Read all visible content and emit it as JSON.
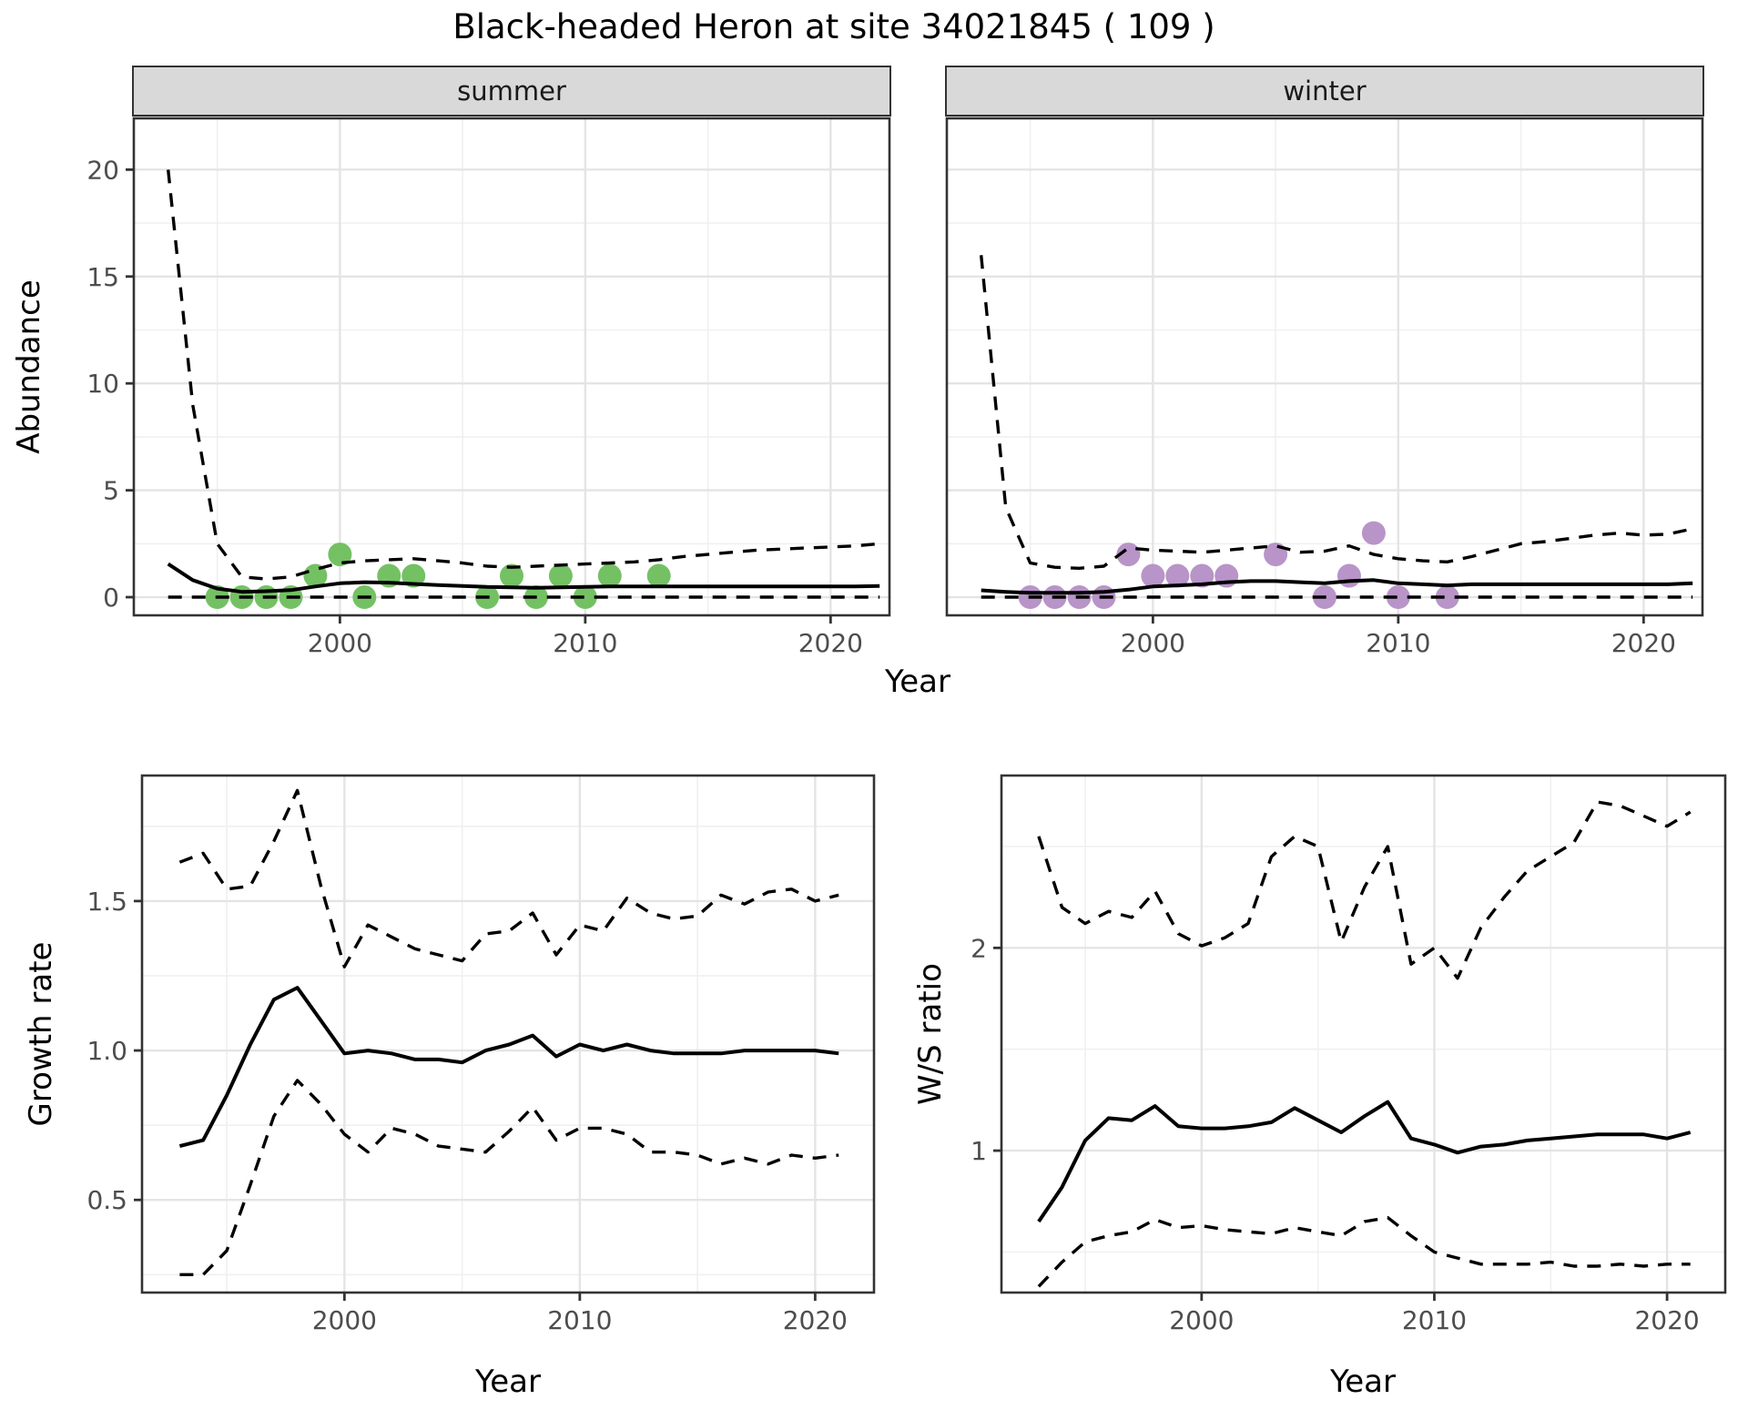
{
  "title": "Black-headed Heron at site 34021845 ( 109 )",
  "facets": {
    "summer": "summer",
    "winter": "winter"
  },
  "axis_titles": {
    "abundance": "Abundance",
    "year": "Year",
    "growth": "Growth rate",
    "ws": "W/S ratio"
  },
  "colors": {
    "summer_points": "#74C164",
    "winter_points": "#B894C8",
    "line": "#000000",
    "strip_bg": "#d9d9d9",
    "grid_major": "#e4e4e4",
    "grid_minor": "#f0f0f0",
    "panel_border": "#333333",
    "tick_text": "#4d4d4d"
  },
  "chart_data": [
    {
      "id": "summer",
      "type": "line",
      "facet_label": "summer",
      "xlabel": "Year",
      "ylabel": "Abundance",
      "xticks": {
        "values": [
          2000,
          2010,
          2020
        ],
        "labels": [
          "2000",
          "2010",
          "2020"
        ]
      },
      "yticks": {
        "values": [
          0,
          5,
          10,
          15,
          20
        ],
        "labels": [
          "0",
          "5",
          "10",
          "15",
          "20"
        ]
      },
      "xlim": [
        1991.6,
        2022.4
      ],
      "ylim": [
        -0.85,
        22.4
      ],
      "x": [
        1993,
        1994,
        1995,
        1996,
        1997,
        1998,
        1999,
        2000,
        2001,
        2002,
        2003,
        2004,
        2005,
        2006,
        2007,
        2008,
        2009,
        2010,
        2011,
        2012,
        2013,
        2014,
        2015,
        2016,
        2017,
        2018,
        2019,
        2020,
        2021,
        2022
      ],
      "series": [
        {
          "name": "upper_ci",
          "style": "dashed",
          "values": [
            20,
            9,
            2.5,
            0.95,
            0.85,
            0.95,
            1.3,
            1.6,
            1.7,
            1.75,
            1.8,
            1.7,
            1.6,
            1.45,
            1.4,
            1.45,
            1.5,
            1.55,
            1.6,
            1.65,
            1.75,
            1.9,
            2.0,
            2.1,
            2.2,
            2.25,
            2.3,
            2.35,
            2.4,
            2.5
          ]
        },
        {
          "name": "median",
          "style": "solid",
          "values": [
            1.55,
            0.8,
            0.4,
            0.25,
            0.28,
            0.33,
            0.5,
            0.65,
            0.7,
            0.68,
            0.62,
            0.57,
            0.52,
            0.48,
            0.46,
            0.44,
            0.46,
            0.48,
            0.5,
            0.5,
            0.5,
            0.5,
            0.5,
            0.5,
            0.5,
            0.5,
            0.5,
            0.5,
            0.5,
            0.52
          ]
        },
        {
          "name": "lower_ci",
          "style": "dashed",
          "values": [
            0,
            0,
            0,
            0,
            0,
            0,
            0,
            0,
            0,
            0,
            0,
            0,
            0,
            0,
            0,
            0,
            0,
            0,
            0,
            0,
            0,
            0,
            0,
            0,
            0,
            0,
            0,
            0,
            0,
            0
          ]
        }
      ],
      "points": {
        "color_key": "summer_points",
        "years": [
          1995,
          1996,
          1997,
          1998,
          1999,
          2000,
          2001,
          2002,
          2003,
          2006,
          2007,
          2008,
          2009,
          2010,
          2011,
          2013
        ],
        "counts": [
          0,
          0,
          0,
          0,
          1,
          2,
          0,
          1,
          1,
          0,
          1,
          0,
          1,
          0,
          1,
          1
        ]
      }
    },
    {
      "id": "winter",
      "type": "line",
      "facet_label": "winter",
      "xlabel": "Year",
      "ylabel": "Abundance",
      "xticks": {
        "values": [
          2000,
          2010,
          2020
        ],
        "labels": [
          "2000",
          "2010",
          "2020"
        ]
      },
      "yticks": {
        "values": [
          0,
          5,
          10,
          15,
          20
        ],
        "labels": [
          "0",
          "5",
          "10",
          "15",
          "20"
        ]
      },
      "xlim": [
        1991.6,
        2022.4
      ],
      "ylim": [
        -0.85,
        22.4
      ],
      "x": [
        1993,
        1994,
        1995,
        1996,
        1997,
        1998,
        1999,
        2000,
        2001,
        2002,
        2003,
        2004,
        2005,
        2006,
        2007,
        2008,
        2009,
        2010,
        2011,
        2012,
        2013,
        2014,
        2015,
        2016,
        2017,
        2018,
        2019,
        2020,
        2021,
        2022
      ],
      "series": [
        {
          "name": "upper_ci",
          "style": "dashed",
          "values": [
            16,
            4.2,
            1.6,
            1.4,
            1.35,
            1.45,
            2.3,
            2.2,
            2.15,
            2.1,
            2.2,
            2.3,
            2.4,
            2.1,
            2.15,
            2.4,
            2.0,
            1.8,
            1.7,
            1.65,
            1.9,
            2.2,
            2.5,
            2.6,
            2.75,
            2.9,
            3.0,
            2.9,
            2.95,
            3.2
          ]
        },
        {
          "name": "median",
          "style": "solid",
          "values": [
            0.32,
            0.25,
            0.2,
            0.2,
            0.2,
            0.25,
            0.35,
            0.5,
            0.55,
            0.6,
            0.7,
            0.75,
            0.75,
            0.7,
            0.65,
            0.75,
            0.8,
            0.65,
            0.6,
            0.55,
            0.6,
            0.6,
            0.6,
            0.6,
            0.6,
            0.6,
            0.6,
            0.6,
            0.6,
            0.65
          ]
        },
        {
          "name": "lower_ci",
          "style": "dashed",
          "values": [
            0,
            0,
            0,
            0,
            0,
            0,
            0,
            0,
            0,
            0,
            0,
            0,
            0,
            0,
            0,
            0,
            0,
            0,
            0,
            0,
            0,
            0,
            0,
            0,
            0,
            0,
            0,
            0,
            0,
            0
          ]
        }
      ],
      "points": {
        "color_key": "winter_points",
        "years": [
          1995,
          1996,
          1997,
          1998,
          1999,
          2000,
          2001,
          2002,
          2003,
          2005,
          2007,
          2008,
          2009,
          2010,
          2012
        ],
        "counts": [
          0,
          0,
          0,
          0,
          2,
          1,
          1,
          1,
          1,
          2,
          0,
          1,
          3,
          0,
          0
        ]
      }
    },
    {
      "id": "growth",
      "type": "line",
      "xlabel": "Year",
      "ylabel": "Growth rate",
      "xticks": {
        "values": [
          2000,
          2010,
          2020
        ],
        "labels": [
          "2000",
          "2010",
          "2020"
        ]
      },
      "yticks": {
        "values": [
          0.5,
          1.0,
          1.5
        ],
        "labels": [
          "0.5",
          "1.0",
          "1.5"
        ]
      },
      "xlim": [
        1991.4,
        2022.5
      ],
      "ylim": [
        0.19,
        1.92
      ],
      "x": [
        1993,
        1994,
        1995,
        1996,
        1997,
        1998,
        1999,
        2000,
        2001,
        2002,
        2003,
        2004,
        2005,
        2006,
        2007,
        2008,
        2009,
        2010,
        2011,
        2012,
        2013,
        2014,
        2015,
        2016,
        2017,
        2018,
        2019,
        2020,
        2021
      ],
      "series": [
        {
          "name": "upper_ci",
          "style": "dashed",
          "values": [
            1.63,
            1.66,
            1.54,
            1.55,
            1.7,
            1.87,
            1.55,
            1.28,
            1.42,
            1.38,
            1.34,
            1.32,
            1.3,
            1.39,
            1.4,
            1.46,
            1.32,
            1.42,
            1.4,
            1.51,
            1.46,
            1.44,
            1.45,
            1.52,
            1.49,
            1.53,
            1.54,
            1.5,
            1.52
          ]
        },
        {
          "name": "median",
          "style": "solid",
          "values": [
            0.68,
            0.7,
            0.85,
            1.02,
            1.17,
            1.21,
            1.1,
            0.99,
            1.0,
            0.99,
            0.97,
            0.97,
            0.96,
            1.0,
            1.02,
            1.05,
            0.98,
            1.02,
            1.0,
            1.02,
            1.0,
            0.99,
            0.99,
            0.99,
            1.0,
            1.0,
            1.0,
            1.0,
            0.99
          ]
        },
        {
          "name": "lower_ci",
          "style": "dashed",
          "values": [
            0.25,
            0.25,
            0.33,
            0.55,
            0.78,
            0.9,
            0.82,
            0.72,
            0.66,
            0.74,
            0.72,
            0.68,
            0.67,
            0.66,
            0.73,
            0.81,
            0.7,
            0.74,
            0.74,
            0.72,
            0.66,
            0.66,
            0.65,
            0.62,
            0.64,
            0.62,
            0.65,
            0.64,
            0.65
          ]
        }
      ]
    },
    {
      "id": "ws",
      "type": "line",
      "xlabel": "Year",
      "ylabel": "W/S ratio",
      "xticks": {
        "values": [
          2000,
          2010,
          2020
        ],
        "labels": [
          "2000",
          "2010",
          "2020"
        ]
      },
      "yticks": {
        "values": [
          1,
          2
        ],
        "labels": [
          "1",
          "2"
        ]
      },
      "xlim": [
        1991.4,
        2022.5
      ],
      "ylim": [
        0.3,
        2.85
      ],
      "x": [
        1993,
        1994,
        1995,
        1996,
        1997,
        1998,
        1999,
        2000,
        2001,
        2002,
        2003,
        2004,
        2005,
        2006,
        2007,
        2008,
        2009,
        2010,
        2011,
        2012,
        2013,
        2014,
        2015,
        2016,
        2017,
        2018,
        2019,
        2020,
        2021
      ],
      "series": [
        {
          "name": "upper_ci",
          "style": "dashed",
          "values": [
            2.55,
            2.2,
            2.12,
            2.18,
            2.15,
            2.28,
            2.07,
            2.01,
            2.05,
            2.12,
            2.45,
            2.55,
            2.5,
            2.03,
            2.3,
            2.5,
            1.92,
            2.0,
            1.85,
            2.1,
            2.25,
            2.38,
            2.45,
            2.52,
            2.72,
            2.7,
            2.65,
            2.6,
            2.67
          ]
        },
        {
          "name": "median",
          "style": "solid",
          "values": [
            0.65,
            0.82,
            1.05,
            1.16,
            1.15,
            1.22,
            1.12,
            1.11,
            1.11,
            1.12,
            1.14,
            1.21,
            1.15,
            1.09,
            1.17,
            1.24,
            1.06,
            1.03,
            0.99,
            1.02,
            1.03,
            1.05,
            1.06,
            1.07,
            1.08,
            1.08,
            1.08,
            1.06,
            1.09
          ]
        },
        {
          "name": "lower_ci",
          "style": "dashed",
          "values": [
            0.33,
            0.45,
            0.55,
            0.58,
            0.6,
            0.66,
            0.62,
            0.63,
            0.61,
            0.6,
            0.59,
            0.62,
            0.6,
            0.58,
            0.65,
            0.67,
            0.58,
            0.5,
            0.47,
            0.44,
            0.44,
            0.44,
            0.45,
            0.43,
            0.43,
            0.44,
            0.43,
            0.44,
            0.44
          ]
        }
      ]
    }
  ]
}
